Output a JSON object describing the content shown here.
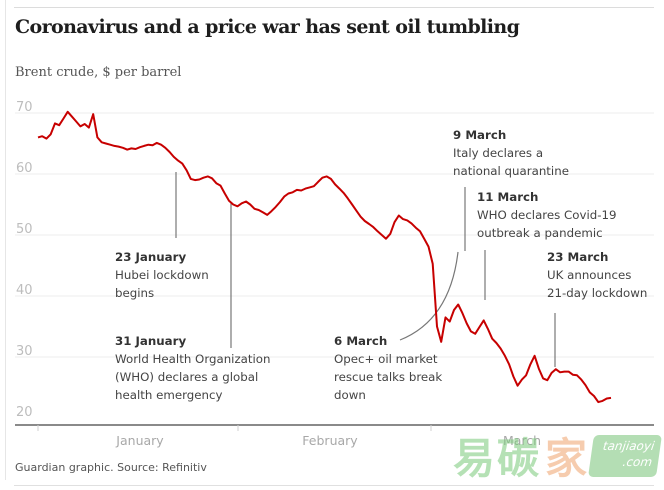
{
  "chart_data": {
    "type": "line",
    "title": "Coronavirus and a price war has sent oil tumbling",
    "subtitle": "Brent crude, $ per barrel",
    "xlabel": "",
    "ylabel": "Brent crude, $ per barrel",
    "ylim": [
      20,
      70
    ],
    "yticks": [
      70,
      60,
      50,
      40,
      30,
      20
    ],
    "xticks": [
      "January",
      "February",
      "March"
    ],
    "grid": true,
    "series": [
      {
        "name": "Brent crude",
        "color": "#c70000",
        "x_start": "2 January",
        "x_end": "25 March",
        "values": [
          66.0,
          66.2,
          65.8,
          66.5,
          68.3,
          68.0,
          69.1,
          70.2,
          69.4,
          68.6,
          67.8,
          68.2,
          67.6,
          69.8,
          66.0,
          65.2,
          65.0,
          64.8,
          64.6,
          64.5,
          64.3,
          64.0,
          64.2,
          64.1,
          64.4,
          64.6,
          64.8,
          64.7,
          65.1,
          64.8,
          64.3,
          63.6,
          62.8,
          62.2,
          61.7,
          60.6,
          59.2,
          59.0,
          59.1,
          59.4,
          59.6,
          59.3,
          58.5,
          58.1,
          56.8,
          55.6,
          55.0,
          54.7,
          55.2,
          55.5,
          55.0,
          54.3,
          54.1,
          53.7,
          53.3,
          53.9,
          54.6,
          55.4,
          56.3,
          56.8,
          57.0,
          57.4,
          57.3,
          57.6,
          57.8,
          58.0,
          58.7,
          59.4,
          59.6,
          59.2,
          58.3,
          57.6,
          56.9,
          56.0,
          55.0,
          54.0,
          53.0,
          52.3,
          51.8,
          51.3,
          50.6,
          50.0,
          49.4,
          50.2,
          52.1,
          53.2,
          52.6,
          52.4,
          51.9,
          51.2,
          50.6,
          49.4,
          48.1,
          45.3,
          35.0,
          32.5,
          36.5,
          35.8,
          37.7,
          38.6,
          37.2,
          35.5,
          34.2,
          33.8,
          34.9,
          36.0,
          34.6,
          33.0,
          32.3,
          31.4,
          30.2,
          28.8,
          26.8,
          25.3,
          26.3,
          27.0,
          28.8,
          30.2,
          28.1,
          26.5,
          26.2,
          27.4,
          28.0,
          27.5,
          27.6,
          27.6,
          27.1,
          27.0,
          26.3,
          25.4,
          24.2,
          23.6,
          22.6,
          22.8,
          23.2,
          23.3
        ]
      }
    ],
    "annotations": [
      {
        "date": "23 January",
        "text": [
          "Hubei lockdown",
          "begins"
        ]
      },
      {
        "date": "31 January",
        "text": [
          "World Health Organization",
          "(WHO) declares a global",
          "health emergency"
        ]
      },
      {
        "date": "6 March",
        "text": [
          "Opec+ oil market",
          "rescue talks break",
          "down"
        ]
      },
      {
        "date": "9 March",
        "text": [
          "Italy declares a",
          "national quarantine"
        ]
      },
      {
        "date": "11 March",
        "text": [
          "WHO declares Covid-19",
          "outbreak a pandemic"
        ]
      },
      {
        "date": "23 March",
        "text": [
          "UK announces",
          "21-day lockdown"
        ]
      }
    ],
    "source": "Guardian graphic. Source: Refinitiv"
  },
  "watermark": {
    "chars": [
      "易",
      "碳",
      "家"
    ],
    "badge_line1": "tanjiaoyi",
    "badge_line2": ".com"
  }
}
